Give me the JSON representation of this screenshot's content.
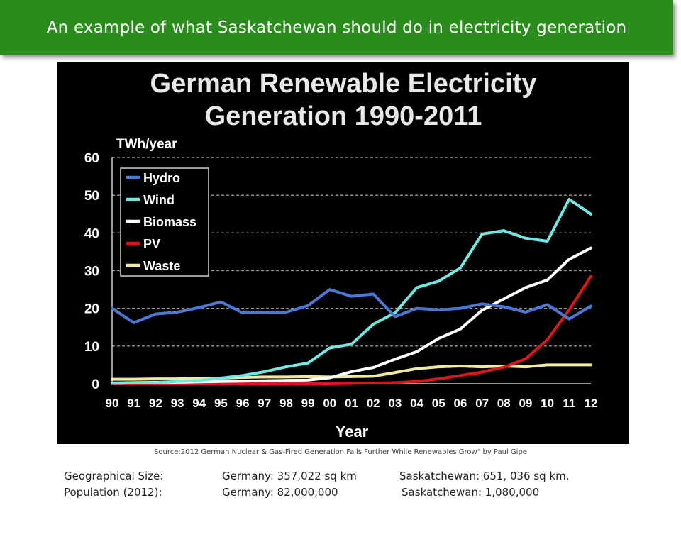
{
  "header": {
    "title": "An example of what Saskatchewan should do in electricity generation"
  },
  "colors": {
    "header_bg": "#2b8c1e",
    "hydro": "#4a78d6",
    "wind": "#6ee8e2",
    "biomass": "#ffffff",
    "pv": "#e0141a",
    "waste": "#f0eaa0"
  },
  "chart_data": {
    "type": "line",
    "title": "German Renewable Electricity Generation 1990-2011",
    "title_lines": [
      "German Renewable Electricity",
      "Generation 1990-2011"
    ],
    "ylabel": "TWh/year",
    "xlabel": "Year",
    "ylim": [
      0,
      60
    ],
    "yticks": [
      "0",
      "10",
      "20",
      "30",
      "40",
      "50",
      "60"
    ],
    "categories": [
      "90",
      "91",
      "92",
      "93",
      "94",
      "95",
      "96",
      "97",
      "98",
      "99",
      "00",
      "01",
      "02",
      "03",
      "04",
      "05",
      "06",
      "07",
      "08",
      "09",
      "10",
      "11",
      "12"
    ],
    "grid": "horizontal dashed",
    "legend_position": "top-left",
    "series": [
      {
        "name": "Hydro",
        "color": "#4a78d6",
        "values": [
          20,
          16.2,
          18.5,
          19,
          20.2,
          21.7,
          18.8,
          19,
          19,
          20.7,
          25,
          23.2,
          23.8,
          17.8,
          20,
          19.6,
          20,
          21.2,
          20.4,
          19,
          21,
          17.2,
          20.6
        ]
      },
      {
        "name": "Wind",
        "color": "#6ee8e2",
        "values": [
          0.1,
          0.2,
          0.3,
          0.6,
          0.9,
          1.5,
          2.2,
          3.2,
          4.5,
          5.5,
          9.5,
          10.5,
          15.8,
          18.8,
          25.5,
          27.2,
          30.7,
          39.7,
          40.6,
          38.6,
          37.8,
          48.9,
          45
        ]
      },
      {
        "name": "Biomass",
        "color": "#ffffff",
        "values": [
          0.2,
          0.3,
          0.4,
          0.4,
          0.5,
          0.6,
          0.7,
          0.8,
          0.9,
          1.0,
          1.6,
          3.2,
          4.3,
          6.5,
          8.5,
          12.0,
          14.5,
          19.5,
          22.5,
          25.5,
          27.5,
          33,
          36
        ]
      },
      {
        "name": "PV",
        "color": "#e0141a",
        "values": [
          0,
          0,
          0,
          0,
          0,
          0,
          0,
          0,
          0,
          0,
          0,
          0.1,
          0.2,
          0.3,
          0.6,
          1.3,
          2.2,
          3.1,
          4.4,
          6.6,
          11.7,
          19.6,
          28.5
        ]
      },
      {
        "name": "Waste",
        "color": "#f0eaa0",
        "values": [
          1.2,
          1.2,
          1.3,
          1.3,
          1.4,
          1.5,
          1.7,
          1.8,
          1.8,
          1.9,
          1.8,
          1.9,
          2.0,
          3.0,
          4.0,
          4.5,
          4.7,
          4.5,
          4.7,
          4.5,
          5.0,
          5.0,
          5.0
        ]
      }
    ]
  },
  "source": {
    "text": "Source:2012 German Nuclear & Gas-Fired Generation Falls Further While Renewables Grow\" by Paul Gipe"
  },
  "facts": {
    "row1": {
      "label": "Geographical Size:",
      "germany": "Germany:  357,022 sq km",
      "sask": "Saskatchewan: 651, 036 sq km."
    },
    "row2": {
      "label": "Population (2012):",
      "germany": "Germany:   82,000,000",
      "sask": "Saskatchewan: 1,080,000"
    }
  }
}
